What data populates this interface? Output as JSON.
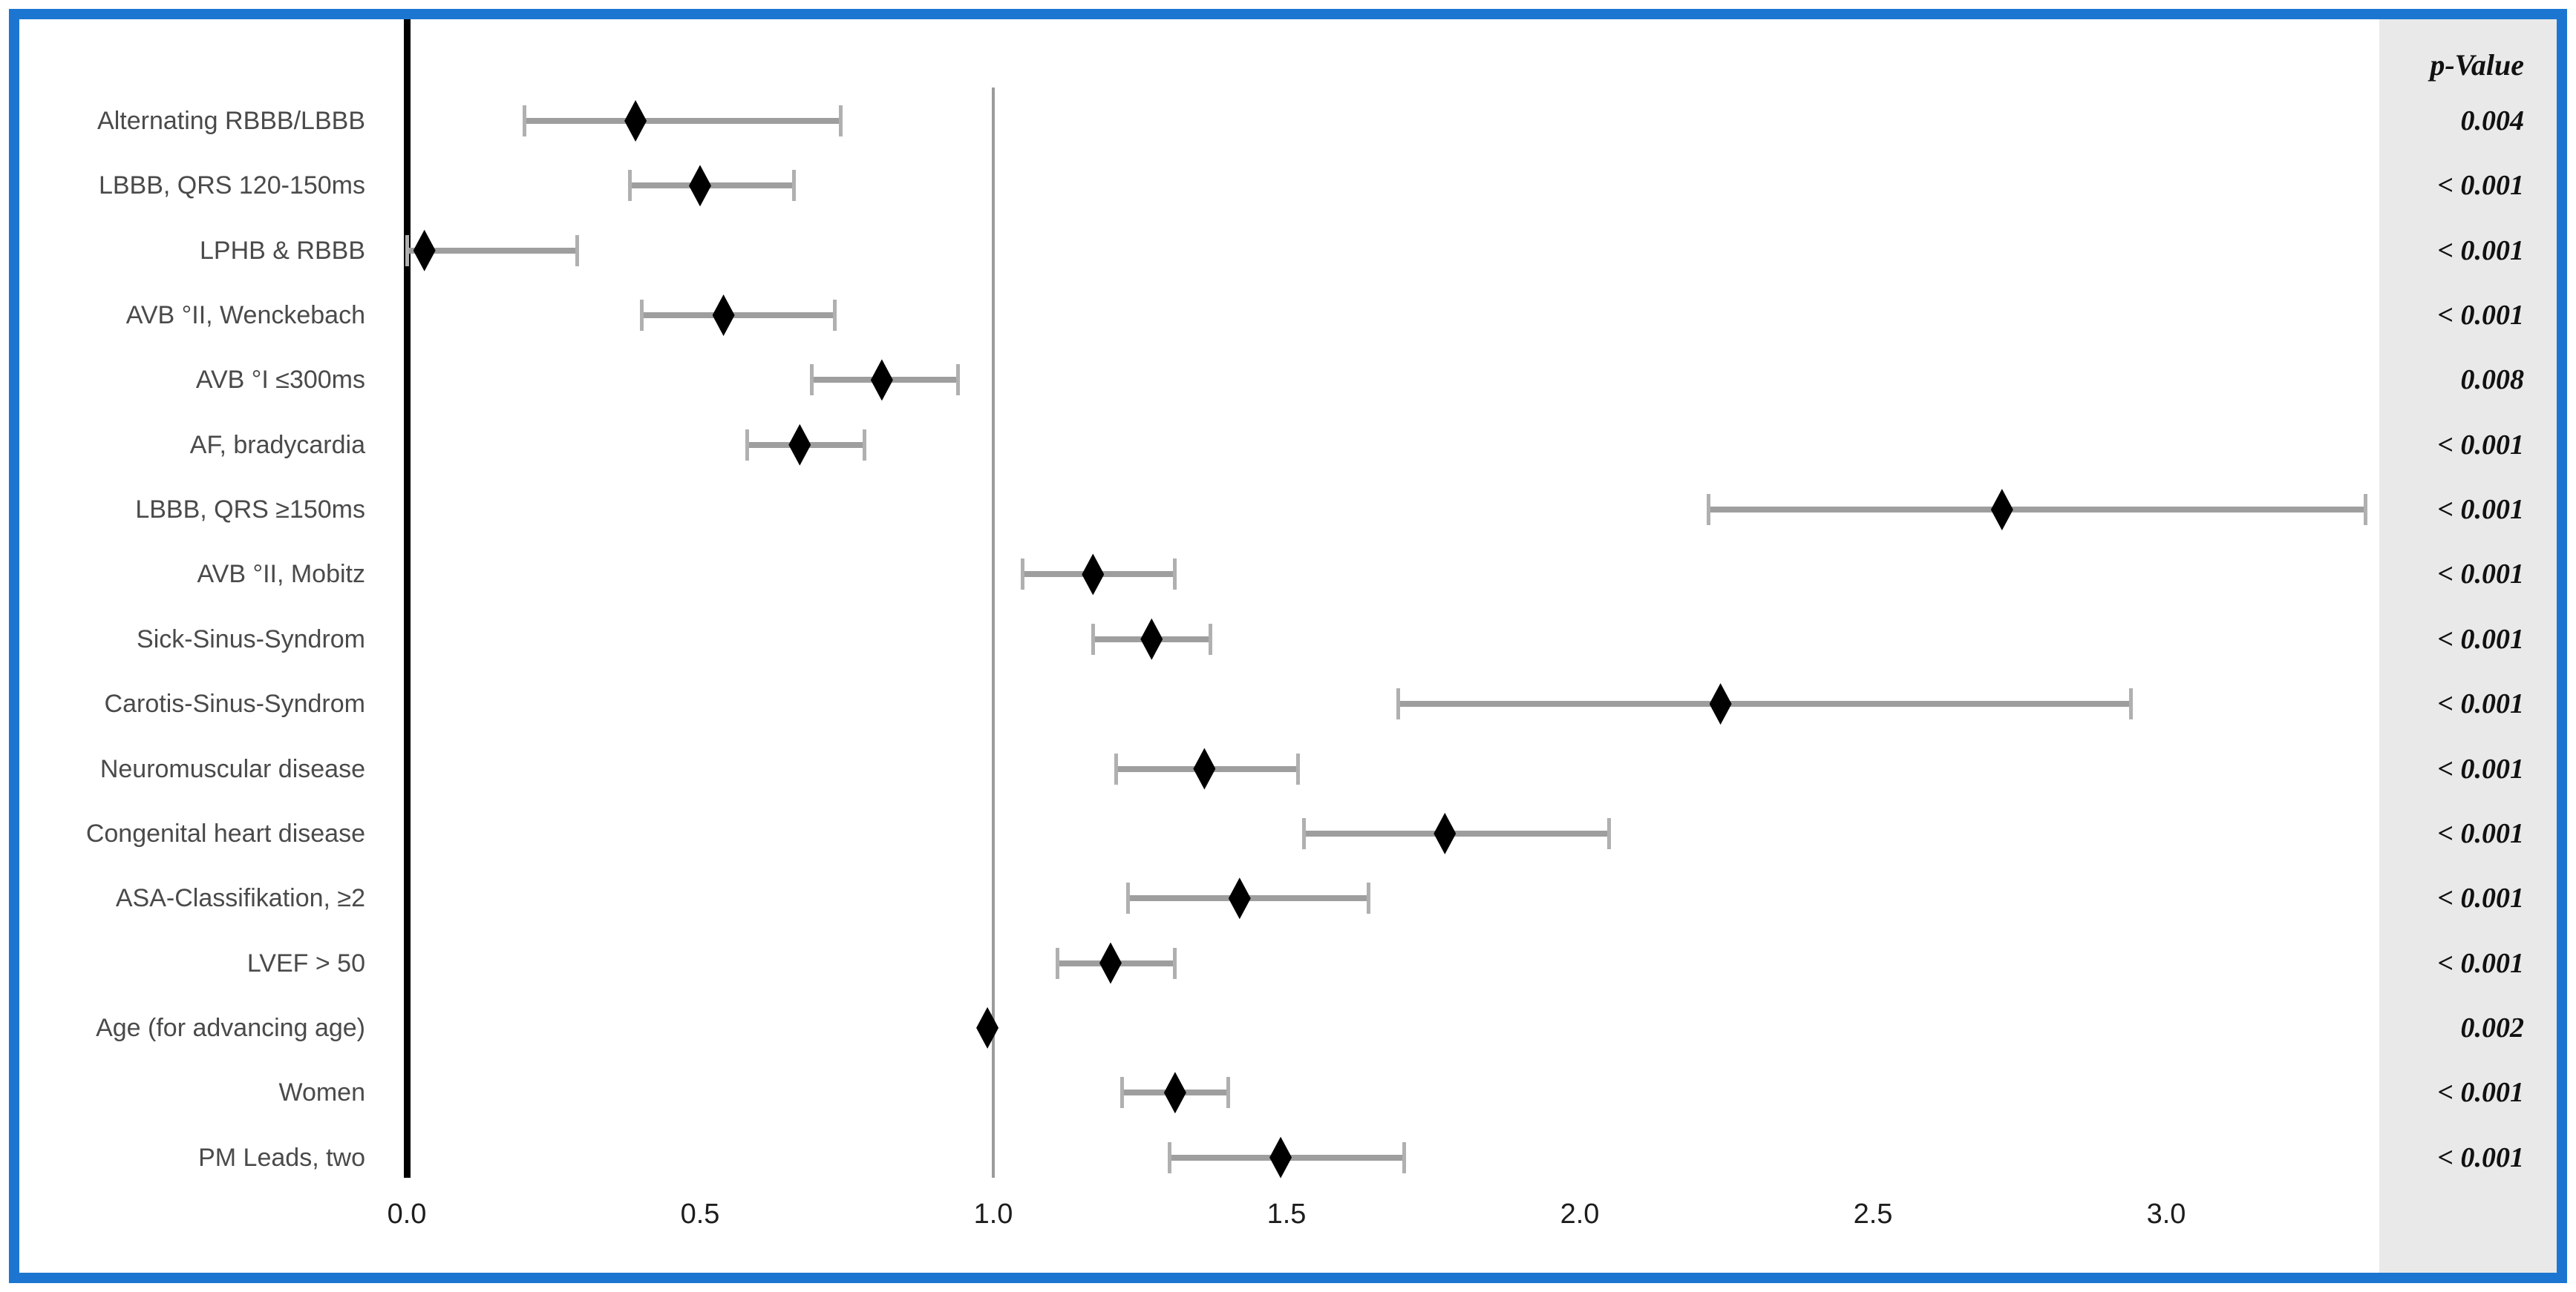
{
  "colors": {
    "border_blue": "#1c76d1",
    "panel_gray": "#e9e9e9",
    "reference_line_gray": "#9b9b9b",
    "ci_bar_gray": "#9e9e9e",
    "ci_cap_gray": "#b0b0b0",
    "row_label_gray": "#4a4a4a",
    "marker_black": "#000000"
  },
  "p_column": {
    "header": "p-Value"
  },
  "chart_data": {
    "type": "scatter",
    "subtype": "forest-plot",
    "orientation": "horizontal",
    "title": "",
    "xlabel": "",
    "ylabel": "",
    "grid": false,
    "legend": null,
    "xlim": [
      -0.58,
      3.37
    ],
    "x_ticks": [
      0,
      0.5,
      1,
      1.5,
      2,
      2.5,
      3
    ],
    "x_tick_labels": [
      "0.0",
      "0.5",
      "1.0",
      "1.5",
      "2.0",
      "2.5",
      "3.0"
    ],
    "reference_lines": [
      {
        "value": 0,
        "style": "thick-black"
      },
      {
        "value": 1,
        "style": "thin-gray"
      }
    ],
    "categories": [
      "Alternating RBBB/LBBB",
      "LBBB, QRS 120-150ms",
      "LPHB & RBBB",
      "AVB °II, Wenckebach",
      "AVB °I ≤300ms",
      "AF, bradycardia",
      "LBBB, QRS ≥150ms",
      "AVB °II, Mobitz",
      "Sick-Sinus-Syndrom",
      "Carotis-Sinus-Syndrom",
      "Neuromuscular disease",
      "Congenital heart disease",
      "ASA-Classifikation, ≥2",
      "LVEF > 50",
      "Age (for advancing age)",
      "Women",
      "PM Leads, two"
    ],
    "values": [
      0.39,
      0.5,
      0.03,
      0.54,
      0.81,
      0.67,
      2.72,
      1.17,
      1.27,
      2.24,
      1.36,
      1.77,
      1.42,
      1.2,
      0.99,
      1.31,
      1.49
    ],
    "ci_low": [
      0.2,
      0.38,
      0.0,
      0.4,
      0.69,
      0.58,
      2.22,
      1.05,
      1.17,
      1.69,
      1.21,
      1.53,
      1.23,
      1.11,
      0.98,
      1.22,
      1.3
    ],
    "ci_high": [
      0.74,
      0.66,
      0.29,
      0.73,
      0.94,
      0.78,
      3.34,
      1.31,
      1.37,
      2.94,
      1.52,
      2.05,
      1.64,
      1.31,
      0.99,
      1.4,
      1.7
    ],
    "p_values": [
      "0.004",
      "< 0.001",
      "< 0.001",
      "< 0.001",
      "0.008",
      "< 0.001",
      "< 0.001",
      "< 0.001",
      "< 0.001",
      "< 0.001",
      "< 0.001",
      "< 0.001",
      "< 0.001",
      "< 0.001",
      "0.002",
      "< 0.001",
      "< 0.001"
    ]
  }
}
